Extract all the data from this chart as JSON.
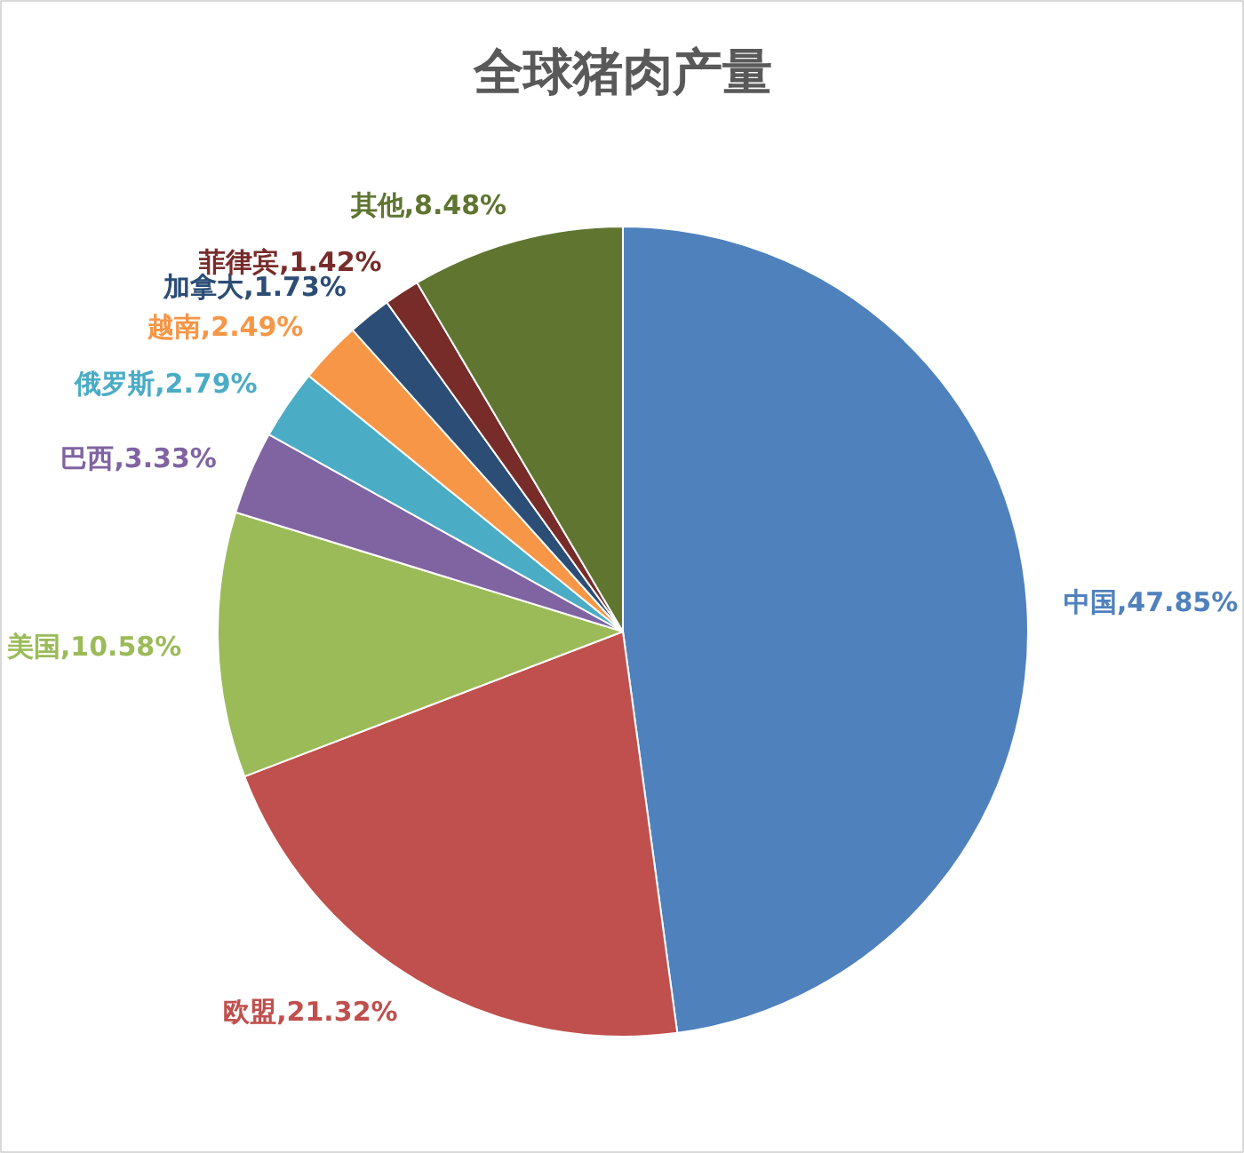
{
  "chart_data": {
    "type": "pie",
    "title": "全球猪肉产量",
    "categories": [
      "中国",
      "欧盟",
      "美国",
      "巴西",
      "俄罗斯",
      "越南",
      "加拿大",
      "菲律宾",
      "其他"
    ],
    "values": [
      47.85,
      21.32,
      10.58,
      3.33,
      2.79,
      2.49,
      1.73,
      1.42,
      8.48
    ],
    "value_labels": [
      "47.85%",
      "21.32%",
      "10.58%",
      "3.33%",
      "2.79%",
      "2.49%",
      "1.73%",
      "1.42%",
      "8.48%"
    ],
    "colors": [
      "#4f81bd",
      "#c0504d",
      "#9bbb59",
      "#8064a2",
      "#4bacc6",
      "#f79646",
      "#2c4d75",
      "#772c2a",
      "#5f7530"
    ]
  }
}
